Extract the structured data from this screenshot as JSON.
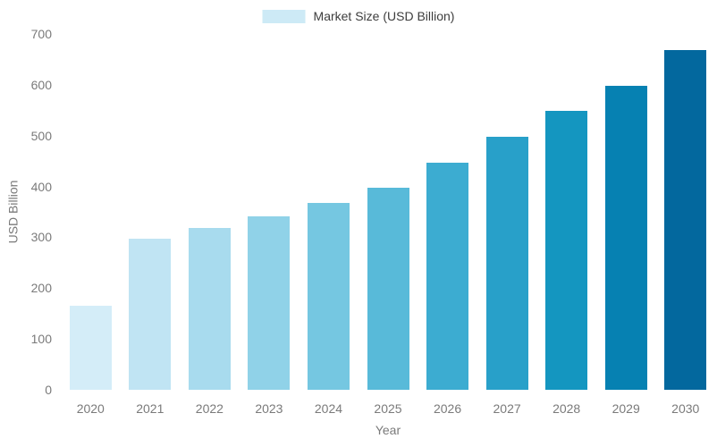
{
  "chart_data": {
    "type": "bar",
    "title": "",
    "xlabel": "Year",
    "ylabel": "USD Billion",
    "categories": [
      "2020",
      "2021",
      "2022",
      "2023",
      "2024",
      "2025",
      "2026",
      "2027",
      "2028",
      "2029",
      "2030"
    ],
    "values": [
      165,
      297,
      319,
      341,
      368,
      397,
      447,
      497,
      548,
      598,
      669
    ],
    "bar_colors": [
      "#d4edf8",
      "#c0e4f3",
      "#a8dbee",
      "#90d2e8",
      "#75c7e1",
      "#58bad9",
      "#3cacd1",
      "#28a0c9",
      "#1496c0",
      "#0681b2",
      "#03689e"
    ],
    "ylim": [
      0,
      700
    ],
    "yticks": [
      0,
      100,
      200,
      300,
      400,
      500,
      600,
      700
    ],
    "grid": false,
    "legend": {
      "label": "Market Size (USD Billion)",
      "swatch_color": "#cdeaf6",
      "position": "top-center"
    },
    "colors": {
      "background": "#ffffff",
      "tick_text": "#7a7a7a",
      "axis_title_text": "#7a7a7a",
      "legend_text": "#3d3d3d"
    }
  }
}
